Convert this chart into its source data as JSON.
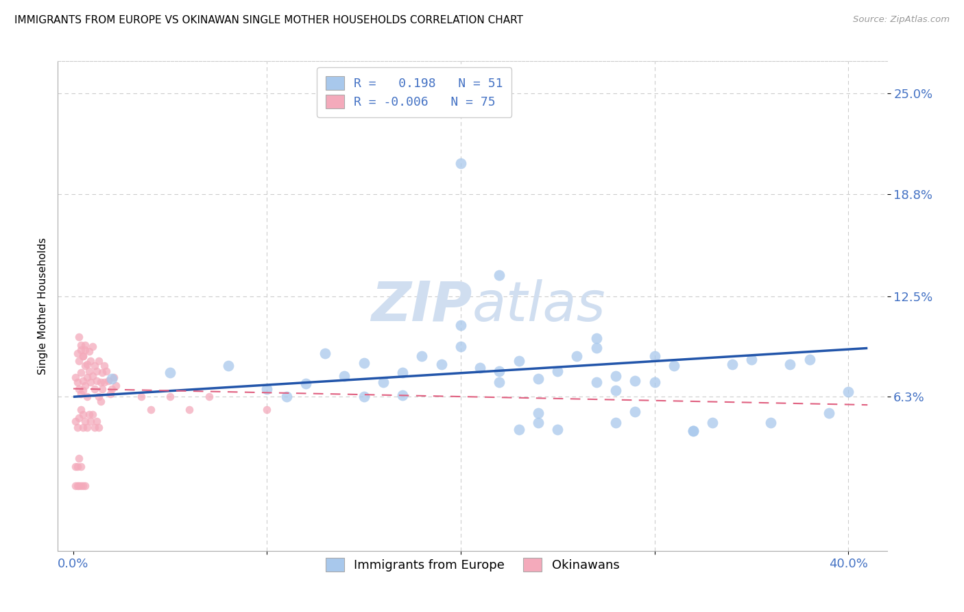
{
  "title": "IMMIGRANTS FROM EUROPE VS OKINAWAN SINGLE MOTHER HOUSEHOLDS CORRELATION CHART",
  "source": "Source: ZipAtlas.com",
  "ylabel": "Single Mother Households",
  "xlim": [
    -0.008,
    0.42
  ],
  "ylim": [
    -0.032,
    0.27
  ],
  "blue_color": "#A8C8EC",
  "pink_color": "#F4AABB",
  "blue_line_color": "#2255AA",
  "pink_line_color": "#E06080",
  "watermark_color": "#D0DEF0",
  "legend_blue_label": "R =   0.198   N = 51",
  "legend_pink_label": "R = -0.006   N = 75",
  "legend_bottom_blue": "Immigrants from Europe",
  "legend_bottom_pink": "Okinawans",
  "axis_color": "#4472C4",
  "grid_color": "#CCCCCC",
  "blue_scatter_x": [
    0.02,
    0.05,
    0.08,
    0.1,
    0.11,
    0.12,
    0.13,
    0.14,
    0.15,
    0.16,
    0.17,
    0.17,
    0.18,
    0.19,
    0.2,
    0.2,
    0.21,
    0.22,
    0.22,
    0.23,
    0.24,
    0.24,
    0.25,
    0.26,
    0.27,
    0.27,
    0.28,
    0.28,
    0.29,
    0.29,
    0.3,
    0.3,
    0.31,
    0.32,
    0.33,
    0.34,
    0.35,
    0.36,
    0.37,
    0.38,
    0.39,
    0.4,
    0.22,
    0.23,
    0.24,
    0.25,
    0.28,
    0.32,
    0.27,
    0.2,
    0.15
  ],
  "blue_scatter_y": [
    0.074,
    0.078,
    0.082,
    0.068,
    0.063,
    0.071,
    0.09,
    0.076,
    0.084,
    0.072,
    0.078,
    0.064,
    0.088,
    0.083,
    0.094,
    0.107,
    0.081,
    0.079,
    0.072,
    0.085,
    0.074,
    0.053,
    0.079,
    0.088,
    0.072,
    0.099,
    0.076,
    0.067,
    0.054,
    0.073,
    0.088,
    0.072,
    0.082,
    0.042,
    0.047,
    0.083,
    0.086,
    0.047,
    0.083,
    0.086,
    0.053,
    0.066,
    0.138,
    0.043,
    0.047,
    0.043,
    0.047,
    0.042,
    0.093,
    0.207,
    0.063
  ],
  "pink_scatter_x": [
    0.001,
    0.002,
    0.002,
    0.003,
    0.003,
    0.004,
    0.004,
    0.004,
    0.005,
    0.005,
    0.005,
    0.006,
    0.006,
    0.006,
    0.007,
    0.007,
    0.007,
    0.008,
    0.008,
    0.009,
    0.009,
    0.01,
    0.01,
    0.011,
    0.011,
    0.012,
    0.012,
    0.013,
    0.013,
    0.014,
    0.015,
    0.015,
    0.016,
    0.016,
    0.017,
    0.018,
    0.019,
    0.02,
    0.021,
    0.022,
    0.001,
    0.002,
    0.003,
    0.004,
    0.005,
    0.005,
    0.006,
    0.007,
    0.008,
    0.009,
    0.01,
    0.011,
    0.012,
    0.013,
    0.014,
    0.035,
    0.04,
    0.05,
    0.06,
    0.07,
    0.001,
    0.002,
    0.003,
    0.004,
    0.005,
    0.006,
    0.001,
    0.002,
    0.003,
    0.004,
    0.1,
    0.003,
    0.004,
    0.005,
    0.006
  ],
  "pink_scatter_y": [
    0.075,
    0.072,
    0.09,
    0.068,
    0.085,
    0.092,
    0.078,
    0.065,
    0.073,
    0.088,
    0.067,
    0.082,
    0.07,
    0.095,
    0.075,
    0.083,
    0.063,
    0.079,
    0.091,
    0.072,
    0.085,
    0.094,
    0.076,
    0.082,
    0.068,
    0.079,
    0.073,
    0.085,
    0.063,
    0.072,
    0.078,
    0.068,
    0.082,
    0.072,
    0.079,
    0.073,
    0.065,
    0.068,
    0.075,
    0.07,
    0.048,
    0.044,
    0.05,
    0.055,
    0.044,
    0.052,
    0.048,
    0.044,
    0.052,
    0.048,
    0.052,
    0.044,
    0.048,
    0.044,
    0.06,
    0.063,
    0.055,
    0.063,
    0.055,
    0.063,
    0.008,
    0.008,
    0.008,
    0.008,
    0.008,
    0.008,
    0.02,
    0.02,
    0.025,
    0.02,
    0.055,
    0.1,
    0.095,
    0.088,
    0.092
  ],
  "blue_trend_x": [
    0.0,
    0.41
  ],
  "blue_trend_y": [
    0.063,
    0.093
  ],
  "pink_trend_x": [
    0.0,
    0.41
  ],
  "pink_trend_y": [
    0.068,
    0.058
  ],
  "blue_size": 130,
  "pink_size": 70
}
